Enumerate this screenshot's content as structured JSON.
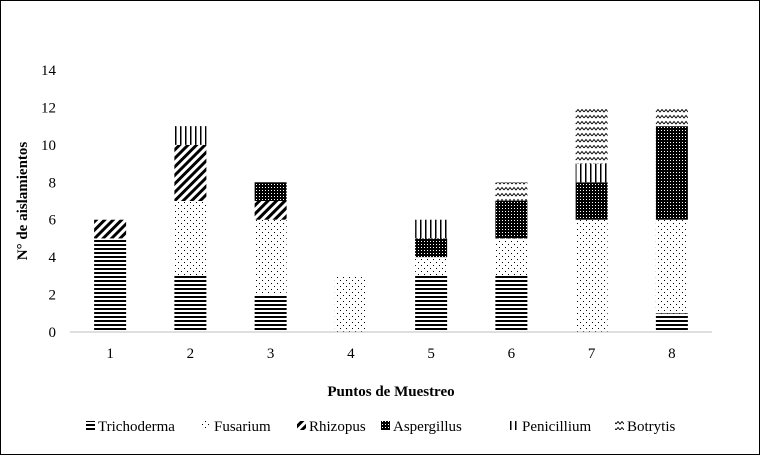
{
  "chart_data": {
    "type": "bar",
    "stacked": true,
    "title": "",
    "xlabel": "Puntos de Muestreo",
    "ylabel": "N° de aislamientos",
    "ylim": [
      0,
      14
    ],
    "yticks": [
      0,
      2,
      4,
      6,
      8,
      10,
      12,
      14
    ],
    "grid": false,
    "legend_position": "bottom",
    "categories": [
      "1",
      "2",
      "3",
      "4",
      "5",
      "6",
      "7",
      "8"
    ],
    "series": [
      {
        "name": "Trichoderma",
        "pattern": "horizontal-lines",
        "values": [
          5,
          3,
          2,
          0,
          3,
          3,
          0,
          1
        ]
      },
      {
        "name": "Fusarium",
        "pattern": "dots",
        "values": [
          0,
          4,
          4,
          3,
          1,
          2,
          6,
          5
        ]
      },
      {
        "name": "Rhizopus",
        "pattern": "diagonal-lines",
        "values": [
          1,
          3,
          1,
          0,
          0,
          0,
          0,
          0
        ]
      },
      {
        "name": "Aspergillus",
        "pattern": "dense-dots",
        "values": [
          0,
          0,
          1,
          0,
          1,
          2,
          2,
          5
        ]
      },
      {
        "name": "Penicillium",
        "pattern": "vertical-lines",
        "values": [
          0,
          1,
          0,
          0,
          1,
          0,
          1,
          0
        ]
      },
      {
        "name": "Botrytis",
        "pattern": "zigzag",
        "values": [
          0,
          0,
          0,
          0,
          0,
          1,
          3,
          1
        ]
      }
    ]
  }
}
